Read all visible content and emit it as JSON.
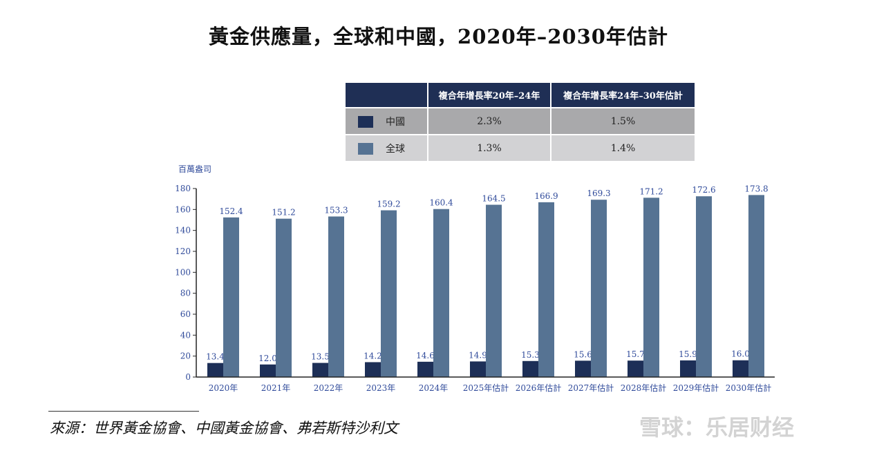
{
  "chart_data": {
    "type": "bar",
    "title": "黃金供應量，全球和中國，2020年–2030年估計",
    "ylabel": "百萬盎司",
    "xlabel": "",
    "ylim": [
      0,
      180
    ],
    "yticks": [
      "0",
      "20",
      "40",
      "60",
      "80",
      "100",
      "120",
      "140",
      "160",
      "180"
    ],
    "categories": [
      "2020年",
      "2021年",
      "2022年",
      "2023年",
      "2024年",
      "2025年估計",
      "2026年估計",
      "2027年估計",
      "2028年估計",
      "2029年估計",
      "2030年估計"
    ],
    "series": [
      {
        "name": "中國",
        "color": "#1d2f57",
        "values": [
          13.4,
          12.0,
          13.5,
          14.2,
          14.6,
          14.9,
          15.3,
          15.6,
          15.7,
          15.9,
          16.0
        ],
        "labels": [
          "13.4",
          "12.0",
          "13.5",
          "14.2",
          "14.6",
          "14.9",
          "15.3",
          "15.6",
          "15.7",
          "15.9",
          "16.0"
        ]
      },
      {
        "name": "全球",
        "color": "#567393",
        "values": [
          152.4,
          151.2,
          153.3,
          159.2,
          160.4,
          164.5,
          166.9,
          169.3,
          171.2,
          172.6,
          173.8
        ],
        "labels": [
          "152.4",
          "151.2",
          "153.3",
          "159.2",
          "160.4",
          "164.5",
          "166.9",
          "169.3",
          "171.2",
          "172.6",
          "173.8"
        ]
      }
    ],
    "grid": false,
    "legend": "table above chart"
  },
  "table": {
    "headers": [
      "",
      "複合年增長率20年–24年",
      "複合年增長率24年–30年估計"
    ],
    "rows": [
      {
        "label": "中國",
        "color": "#1d2f57",
        "values": [
          "2.3%",
          "1.5%"
        ]
      },
      {
        "label": "全球",
        "color": "#567393",
        "values": [
          "1.3%",
          "1.4%"
        ]
      }
    ]
  },
  "source": "來源：世界黃金協會、中國黃金協會、弗若斯特沙利文",
  "watermark": "雪球：乐居财经"
}
